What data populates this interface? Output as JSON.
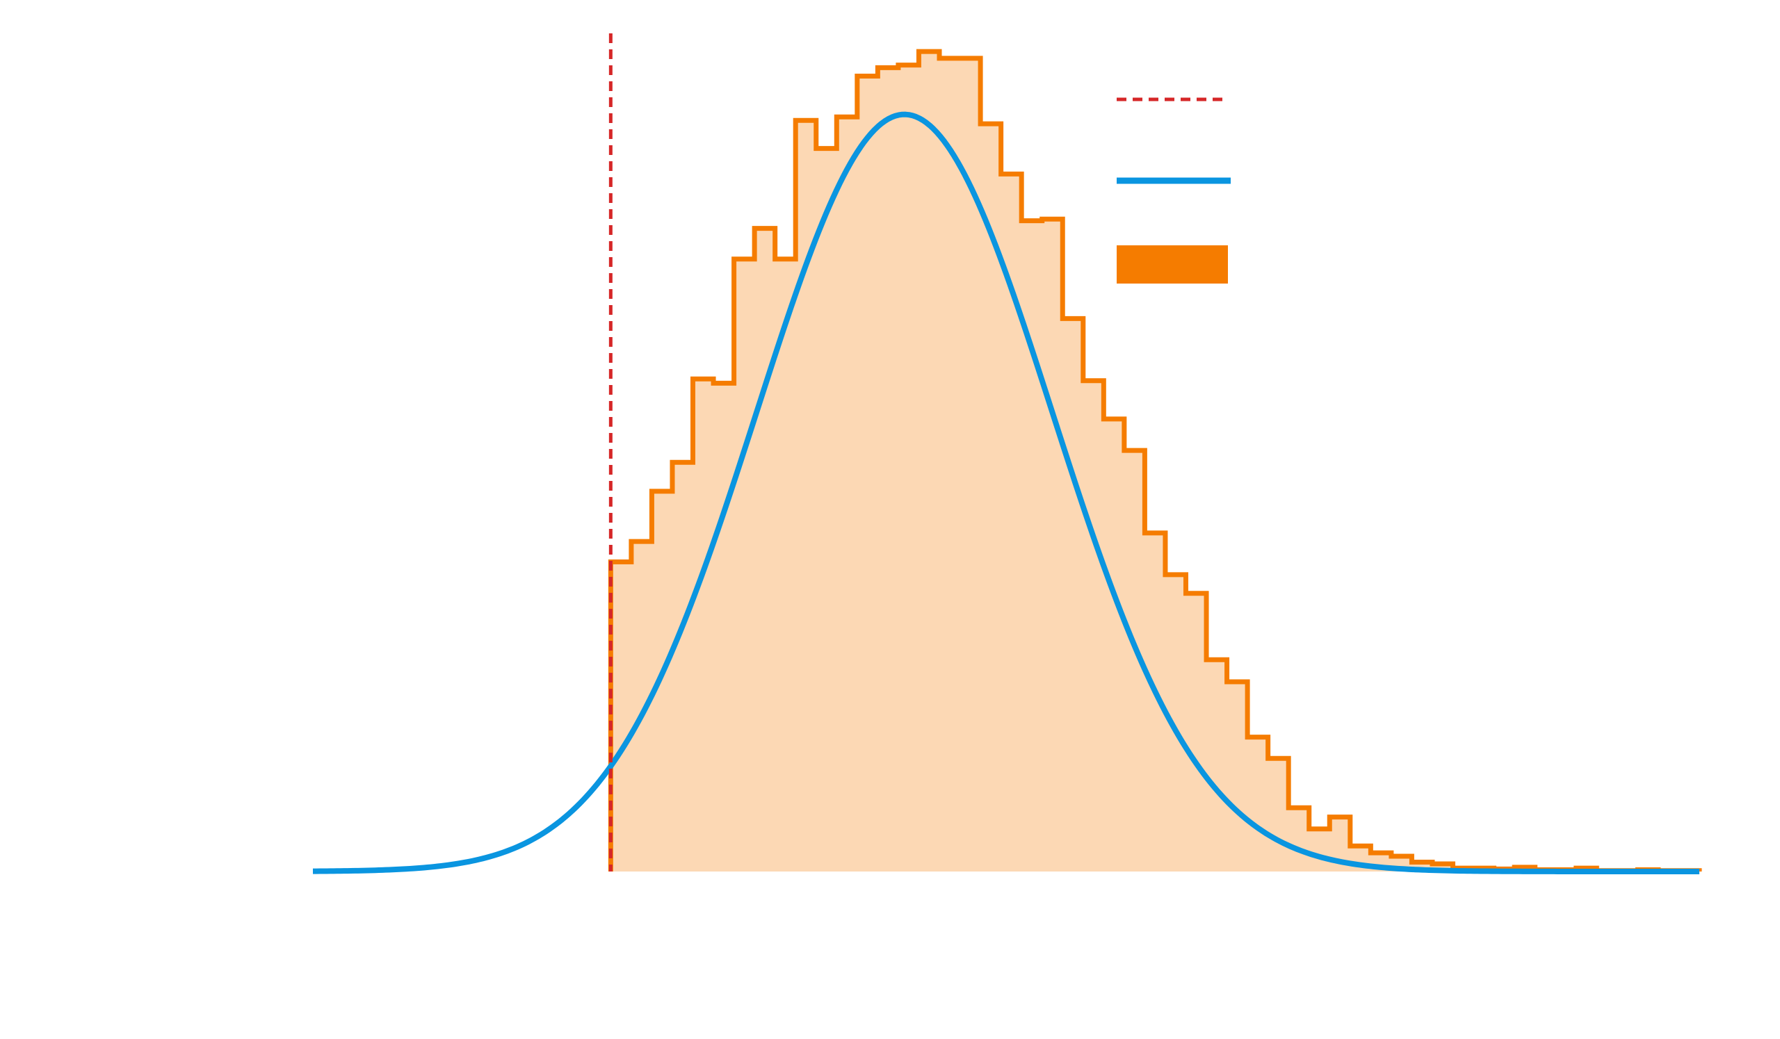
{
  "chart_data": {
    "type": "bar",
    "subtype": "histogram-with-curve",
    "title": "",
    "xlabel": "",
    "ylabel": "",
    "axes_visible": false,
    "xlim": [
      -1.45,
      5.3
    ],
    "ylim": [
      0,
      1.0
    ],
    "grid": false,
    "legend": {
      "position": "top-right",
      "entries": [
        {
          "style": "dashed-line",
          "color": "#d62728",
          "label": ""
        },
        {
          "style": "line",
          "color": "#0a95e0",
          "label": ""
        },
        {
          "style": "filled-box",
          "color": "#f57c00",
          "label": ""
        }
      ]
    },
    "vertical_line": {
      "x": 0.0,
      "color": "#d62728",
      "style": "dashed"
    },
    "curve": {
      "type": "normal-pdf",
      "mean": 1.43,
      "std": 0.72,
      "peak": 0.89,
      "x_range": [
        -1.45,
        5.3
      ],
      "color": "#0a95e0"
    },
    "histogram": {
      "color_edge": "#f57c00",
      "color_fill": "#fcd8b4",
      "bin_width": 0.1,
      "bin_start": 0.0,
      "values": [
        0.364,
        0.388,
        0.447,
        0.481,
        0.579,
        0.574,
        0.72,
        0.756,
        0.72,
        0.883,
        0.85,
        0.887,
        0.935,
        0.945,
        0.948,
        0.964,
        0.956,
        0.956,
        0.879,
        0.82,
        0.765,
        0.767,
        0.65,
        0.577,
        0.532,
        0.495,
        0.398,
        0.349,
        0.327,
        0.249,
        0.223,
        0.158,
        0.133,
        0.075,
        0.05,
        0.064,
        0.03,
        0.022,
        0.018,
        0.011,
        0.009,
        0.004,
        0.004,
        0.003,
        0.005,
        0.002,
        0.002,
        0.004,
        0.001,
        0.001,
        0.002,
        0.001,
        0.001
      ]
    }
  }
}
